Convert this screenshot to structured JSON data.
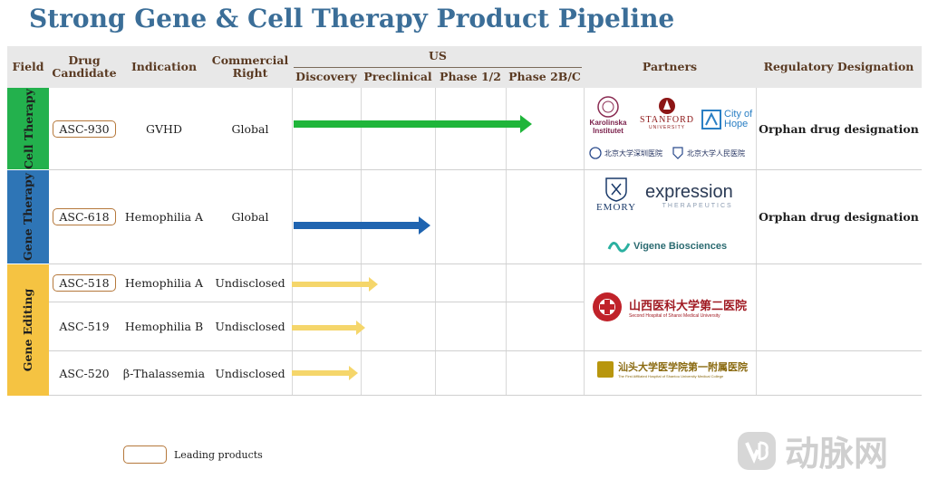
{
  "title": "Strong Gene & Cell Therapy Product Pipeline",
  "headers": {
    "field": "Field",
    "drug_candidate": "Drug Candidate",
    "indication": "Indication",
    "commercial_right": "Commercial Right",
    "us": "US",
    "discovery": "Discovery",
    "preclinical": "Preclinical",
    "phase12": "Phase 1/2",
    "phase2bc": "Phase 2B/C",
    "partners": "Partners",
    "regulatory": "Regulatory Designation"
  },
  "fields": [
    {
      "label": "Cell Therapy",
      "color": "#23b14d"
    },
    {
      "label": "Gene Therapy",
      "color": "#2e75b6"
    },
    {
      "label": "Gene Editing",
      "color": "#f5c342"
    }
  ],
  "rows": [
    {
      "drug": "ASC-930",
      "indication": "GVHD",
      "right": "Global",
      "regulatory": "Orphan drug designation",
      "leading": true,
      "arrow_color": "#1fb53a",
      "stage_progress": 0.68
    },
    {
      "drug": "ASC-618",
      "indication": "Hemophilia A",
      "right": "Global",
      "regulatory": "Orphan drug designation",
      "leading": true,
      "arrow_color": "#1f64b0",
      "stage_progress": 0.4
    },
    {
      "drug": "ASC-518",
      "indication": "Hemophilia A",
      "right": "Undisclosed",
      "regulatory": "",
      "leading": true,
      "arrow_color": "#f5d66b",
      "stage_progress": 0.25
    },
    {
      "drug": "ASC-519",
      "indication": "Hemophilia B",
      "right": "Undisclosed",
      "regulatory": "",
      "leading": false,
      "arrow_color": "#f5d66b",
      "stage_progress": 0.21
    },
    {
      "drug": "ASC-520",
      "indication": "β-Thalassemia",
      "right": "Undisclosed",
      "regulatory": "",
      "leading": false,
      "arrow_color": "#f5d66b",
      "stage_progress": 0.19
    }
  ],
  "partners": {
    "karolinska": "Karolinska Institutet",
    "stanford": "STANFORD",
    "stanford_sub": "UNIVERSITY",
    "city_of_hope": "City of Hope",
    "pku_shenzhen": "北京大学深圳医院",
    "pku_people": "北京大学人民医院",
    "emory": "EMORY",
    "expression": "expression",
    "expression_sub": "THERAPEUTICS",
    "vigene": "Vigene Biosciences",
    "shanxi": "山西医科大学第二医院",
    "shanxi_en": "Second Hospital of Shanxi Medical University",
    "shantou": "汕头大学医学院第一附属医院",
    "shantou_en": "The First Affiliated Hospital of Shantou University Medical College"
  },
  "legend": "Leading products",
  "watermark": "动脉网"
}
